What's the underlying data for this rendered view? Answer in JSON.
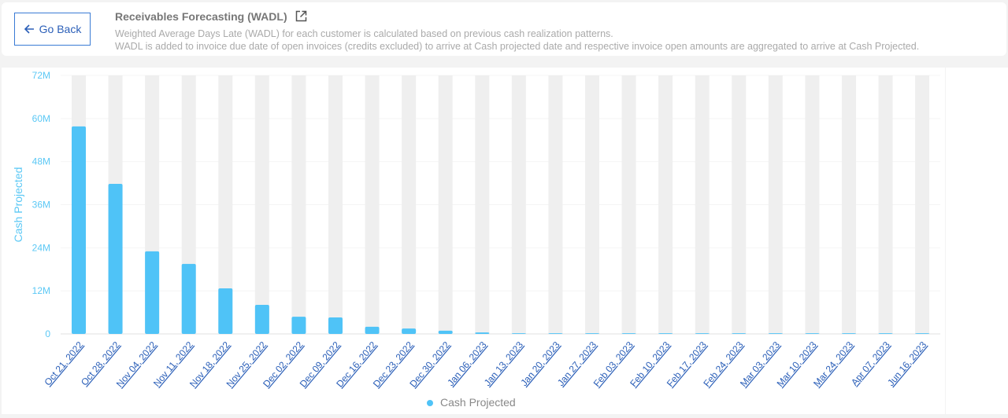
{
  "header": {
    "back_label": "Go Back",
    "title": "Receivables Forecasting (WADL)",
    "desc_line1": "Weighted Average Days Late (WADL) for each customer is calculated based on previous cash realization patterns.",
    "desc_line2": "WADL is added to invoice due date of open invoices (credits excluded) to arrive at Cash projected date and respective invoice open amounts are aggregated to arrive at Cash Projected."
  },
  "chart_data": {
    "type": "bar",
    "title": "",
    "xlabel": "",
    "ylabel": "Cash Projected",
    "ylim": [
      0,
      72
    ],
    "yticks": [
      "0",
      "12M",
      "24M",
      "36M",
      "48M",
      "60M",
      "72M"
    ],
    "ytick_values": [
      0,
      12,
      24,
      36,
      48,
      60,
      72
    ],
    "categories": [
      "Oct 21, 2022",
      "Oct 28, 2022",
      "Nov 04, 2022",
      "Nov 11, 2022",
      "Nov 18, 2022",
      "Nov 25, 2022",
      "Dec 02, 2022",
      "Dec 09, 2022",
      "Dec 16, 2022",
      "Dec 23, 2022",
      "Dec 30, 2022",
      "Jan 06, 2023",
      "Jan 13, 2023",
      "Jan 20, 2023",
      "Jan 27, 2023",
      "Feb 03, 2023",
      "Feb 10, 2023",
      "Feb 17, 2023",
      "Feb 24, 2023",
      "Mar 03, 2023",
      "Mar 10, 2023",
      "Mar 24, 2023",
      "Apr 07, 2023",
      "Jun 16, 2023"
    ],
    "series": [
      {
        "name": "Cash Projected",
        "values": [
          57.8,
          41.8,
          23.0,
          19.5,
          12.7,
          8.1,
          4.8,
          4.6,
          2.0,
          1.5,
          0.9,
          0.4,
          0.2,
          0.2,
          0.2,
          0.2,
          0.2,
          0.2,
          0.2,
          0.2,
          0.2,
          0.2,
          0.2,
          0.2
        ]
      }
    ],
    "legend": "bottom-center",
    "colors": {
      "bar": "#4fc3f7",
      "track": "#efefef",
      "axis_text": "#5bc8f5",
      "category_text": "#2b5fb8"
    }
  }
}
